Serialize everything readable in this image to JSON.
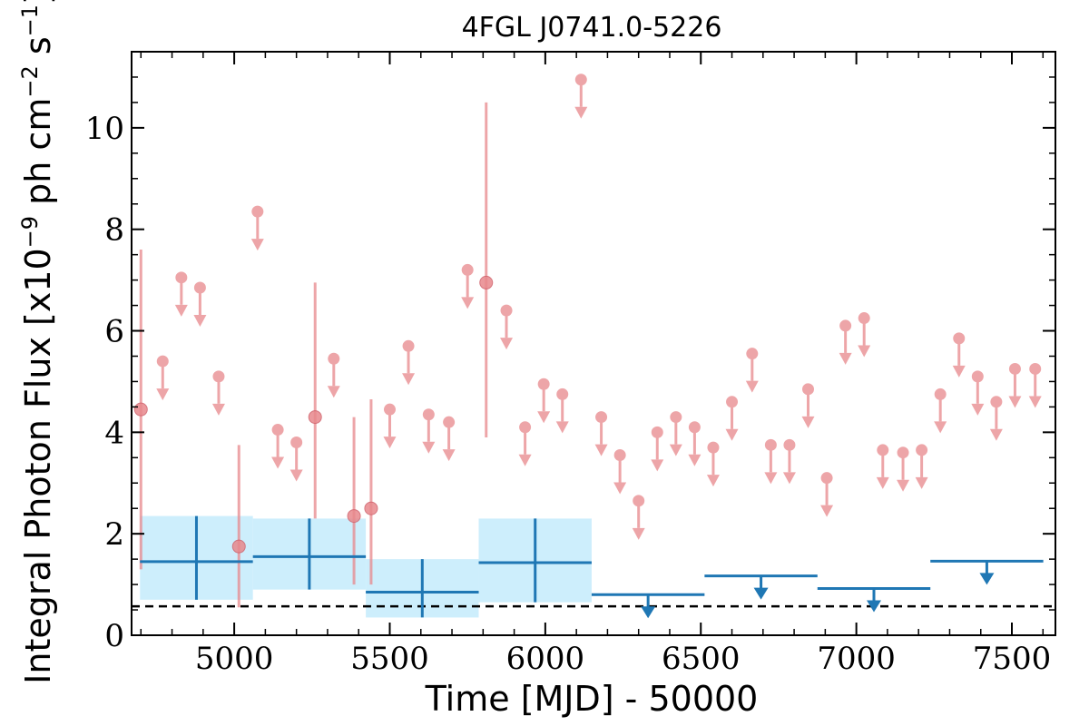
{
  "chart_data": {
    "type": "scatter",
    "title": "4FGL J0741.0-5226",
    "xlabel": "Time [MJD] - 50000",
    "ylabel": {
      "main": "Integral Photon Flux [x10",
      "exp1": "−9",
      "mid": " ph cm",
      "exp2": "−2",
      "mid2": " s",
      "exp3": "−1",
      "end": "]"
    },
    "xlim": [
      4670,
      7640
    ],
    "ylim": [
      0,
      11.5
    ],
    "x_ticks": [
      5000,
      5500,
      6000,
      6500,
      7000,
      7500
    ],
    "x_tick_labels": [
      "5000",
      "5500",
      "6000",
      "6500",
      "7000",
      "7500"
    ],
    "y_ticks": [
      0,
      2,
      4,
      6,
      8,
      10
    ],
    "y_tick_labels": [
      "0",
      "2",
      "4",
      "6",
      "8",
      "10"
    ],
    "colors": {
      "short_bins": "#e8888c",
      "long_bins": "#1f77b4",
      "long_bins_band": "#cdeefc",
      "threshold_line": "#000000"
    },
    "threshold": 0.57,
    "short_bins_detections": [
      {
        "x": 4700,
        "y": 4.45,
        "lo": 1.3,
        "hi": 7.6
      },
      {
        "x": 5015,
        "y": 1.75,
        "lo": 0.55,
        "hi": 3.75
      },
      {
        "x": 5260,
        "y": 4.3,
        "lo": 2.3,
        "hi": 6.95
      },
      {
        "x": 5385,
        "y": 2.35,
        "lo": 1.0,
        "hi": 4.3
      },
      {
        "x": 5440,
        "y": 2.5,
        "lo": 1.0,
        "hi": 4.65
      },
      {
        "x": 5810,
        "y": 6.95,
        "lo": 3.9,
        "hi": 10.5
      }
    ],
    "short_bins_upper_limits": [
      {
        "x": 4770,
        "y": 5.4
      },
      {
        "x": 4830,
        "y": 7.05
      },
      {
        "x": 4890,
        "y": 6.85
      },
      {
        "x": 4950,
        "y": 5.1
      },
      {
        "x": 5075,
        "y": 8.35
      },
      {
        "x": 5140,
        "y": 4.05
      },
      {
        "x": 5200,
        "y": 3.8
      },
      {
        "x": 5320,
        "y": 5.45
      },
      {
        "x": 5500,
        "y": 4.45
      },
      {
        "x": 5560,
        "y": 5.7
      },
      {
        "x": 5625,
        "y": 4.35
      },
      {
        "x": 5690,
        "y": 4.2
      },
      {
        "x": 5750,
        "y": 7.2
      },
      {
        "x": 5875,
        "y": 6.4
      },
      {
        "x": 5935,
        "y": 4.1
      },
      {
        "x": 5995,
        "y": 4.95
      },
      {
        "x": 6055,
        "y": 4.75
      },
      {
        "x": 6115,
        "y": 10.95
      },
      {
        "x": 6180,
        "y": 4.3
      },
      {
        "x": 6240,
        "y": 3.55
      },
      {
        "x": 6300,
        "y": 2.65
      },
      {
        "x": 6360,
        "y": 4.0
      },
      {
        "x": 6420,
        "y": 4.3
      },
      {
        "x": 6480,
        "y": 4.1
      },
      {
        "x": 6540,
        "y": 3.7
      },
      {
        "x": 6600,
        "y": 4.6
      },
      {
        "x": 6665,
        "y": 5.55
      },
      {
        "x": 6725,
        "y": 3.75
      },
      {
        "x": 6785,
        "y": 3.75
      },
      {
        "x": 6845,
        "y": 4.85
      },
      {
        "x": 6905,
        "y": 3.1
      },
      {
        "x": 6965,
        "y": 6.1
      },
      {
        "x": 7025,
        "y": 6.25
      },
      {
        "x": 7085,
        "y": 3.65
      },
      {
        "x": 7150,
        "y": 3.6
      },
      {
        "x": 7210,
        "y": 3.65
      },
      {
        "x": 7270,
        "y": 4.75
      },
      {
        "x": 7330,
        "y": 5.85
      },
      {
        "x": 7390,
        "y": 5.1
      },
      {
        "x": 7450,
        "y": 4.6
      },
      {
        "x": 7510,
        "y": 5.25
      },
      {
        "x": 7575,
        "y": 5.25
      }
    ],
    "long_bins_detections": [
      {
        "x0": 4697,
        "x1": 5060,
        "y": 1.45,
        "lo": 0.7,
        "hi": 2.35
      },
      {
        "x0": 5060,
        "x1": 5423,
        "y": 1.55,
        "lo": 0.9,
        "hi": 2.3
      },
      {
        "x0": 5423,
        "x1": 5786,
        "y": 0.85,
        "lo": 0.35,
        "hi": 1.5
      },
      {
        "x0": 5786,
        "x1": 6149,
        "y": 1.43,
        "lo": 0.65,
        "hi": 2.3
      }
    ],
    "long_bins_upper_limits": [
      {
        "x0": 6149,
        "x1": 6512,
        "y": 0.8
      },
      {
        "x0": 6512,
        "x1": 6875,
        "y": 1.17
      },
      {
        "x0": 6875,
        "x1": 7238,
        "y": 0.92
      },
      {
        "x0": 7238,
        "x1": 7601,
        "y": 1.46
      }
    ]
  }
}
